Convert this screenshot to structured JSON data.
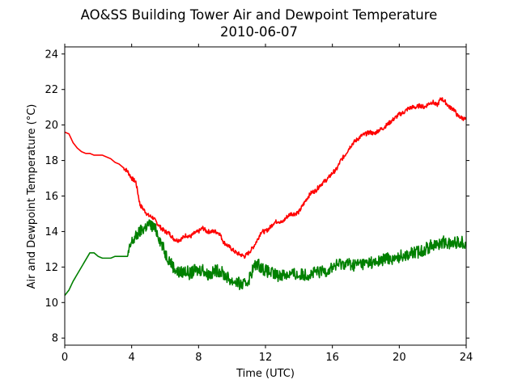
{
  "chart_data": {
    "type": "line",
    "title_line1": "AO&SS Building Tower Air and Dewpoint Temperature",
    "title_line2": "2010-06-07",
    "xlabel": "Time (UTC)",
    "ylabel": "Air and Dewpoint Temperature (°C)",
    "xlim": [
      0,
      24
    ],
    "ylim": [
      7.6,
      24.4
    ],
    "x_ticks": [
      0,
      4,
      8,
      12,
      16,
      20,
      24
    ],
    "y_ticks": [
      8,
      10,
      12,
      14,
      16,
      18,
      20,
      22,
      24
    ],
    "grid": false,
    "legend": "none",
    "series": [
      {
        "color": "#ff0000",
        "x": [
          0,
          0.25,
          0.5,
          0.75,
          1,
          1.25,
          1.5,
          1.75,
          2,
          2.25,
          2.5,
          2.75,
          3,
          3.25,
          3.5,
          3.75,
          4,
          4.25,
          4.5,
          4.75,
          5,
          5.25,
          5.5,
          5.75,
          6,
          6.25,
          6.5,
          6.75,
          7,
          7.25,
          7.5,
          7.75,
          8,
          8.25,
          8.5,
          8.75,
          9,
          9.25,
          9.5,
          9.75,
          10,
          10.25,
          10.5,
          10.75,
          11,
          11.25,
          11.5,
          11.75,
          12,
          12.25,
          12.5,
          12.75,
          13,
          13.25,
          13.5,
          13.75,
          14,
          14.25,
          14.5,
          14.75,
          15,
          15.25,
          15.5,
          15.75,
          16,
          16.25,
          16.5,
          16.75,
          17,
          17.25,
          17.5,
          17.75,
          18,
          18.25,
          18.5,
          18.75,
          19,
          19.25,
          19.5,
          19.75,
          20,
          20.25,
          20.5,
          20.75,
          21,
          21.25,
          21.5,
          21.75,
          22,
          22.25,
          22.5,
          22.75,
          23,
          23.25,
          23.5,
          23.75,
          24
        ],
        "y": [
          19.6,
          19.5,
          19.0,
          18.7,
          18.5,
          18.4,
          18.4,
          18.3,
          18.3,
          18.3,
          18.2,
          18.1,
          17.9,
          17.8,
          17.6,
          17.4,
          17.0,
          16.8,
          15.5,
          15.2,
          14.9,
          14.8,
          14.5,
          14.2,
          14.0,
          13.9,
          13.6,
          13.5,
          13.6,
          13.8,
          13.7,
          13.9,
          14.0,
          14.2,
          14.0,
          14.0,
          14.0,
          13.9,
          13.4,
          13.2,
          13.0,
          12.8,
          12.7,
          12.6,
          12.8,
          13.1,
          13.5,
          14.0,
          14.0,
          14.2,
          14.5,
          14.6,
          14.5,
          14.8,
          15.0,
          15.0,
          15.1,
          15.5,
          15.9,
          16.2,
          16.3,
          16.6,
          16.8,
          17.0,
          17.3,
          17.5,
          18.0,
          18.3,
          18.7,
          19.0,
          19.2,
          19.4,
          19.5,
          19.6,
          19.5,
          19.7,
          19.8,
          20.0,
          20.2,
          20.4,
          20.6,
          20.7,
          20.9,
          21.0,
          21.0,
          21.1,
          21.0,
          21.2,
          21.3,
          21.1,
          21.5,
          21.3,
          21.0,
          20.9,
          20.5,
          20.4,
          20.3
        ]
      },
      {
        "color": "#008000",
        "x": [
          0,
          0.25,
          0.5,
          0.75,
          1,
          1.25,
          1.5,
          1.75,
          2,
          2.25,
          2.5,
          2.75,
          3,
          3.25,
          3.5,
          3.75,
          4,
          4.25,
          4.5,
          4.75,
          5,
          5.25,
          5.5,
          5.75,
          6,
          6.25,
          6.5,
          6.75,
          7,
          7.25,
          7.5,
          7.75,
          8,
          8.25,
          8.5,
          8.75,
          9,
          9.25,
          9.5,
          9.75,
          10,
          10.25,
          10.5,
          10.75,
          11,
          11.25,
          11.5,
          11.75,
          12,
          12.25,
          12.5,
          12.75,
          13,
          13.25,
          13.5,
          13.75,
          14,
          14.25,
          14.5,
          14.75,
          15,
          15.25,
          15.5,
          15.75,
          16,
          16.25,
          16.5,
          16.75,
          17,
          17.25,
          17.5,
          17.75,
          18,
          18.25,
          18.5,
          18.75,
          19,
          19.25,
          19.5,
          19.75,
          20,
          20.25,
          20.5,
          20.75,
          21,
          21.25,
          21.5,
          21.75,
          22,
          22.25,
          22.5,
          22.75,
          23,
          23.25,
          23.5,
          23.75,
          24
        ],
        "y": [
          10.4,
          10.7,
          11.2,
          11.6,
          12.0,
          12.4,
          12.8,
          12.8,
          12.6,
          12.5,
          12.5,
          12.5,
          12.6,
          12.6,
          12.6,
          12.6,
          13.4,
          13.7,
          14.0,
          14.2,
          14.4,
          14.3,
          14.0,
          13.4,
          12.8,
          12.4,
          12.0,
          11.7,
          11.7,
          11.8,
          11.6,
          11.8,
          11.8,
          11.9,
          11.6,
          11.6,
          11.8,
          11.8,
          11.6,
          11.4,
          11.2,
          11.2,
          11.0,
          11.0,
          11.3,
          11.9,
          12.2,
          12.0,
          11.8,
          11.7,
          11.6,
          11.5,
          11.6,
          11.6,
          11.6,
          11.6,
          11.5,
          11.6,
          11.6,
          11.6,
          11.7,
          11.7,
          11.8,
          11.8,
          12.0,
          12.1,
          12.2,
          12.2,
          12.2,
          12.1,
          12.2,
          12.2,
          12.2,
          12.3,
          12.2,
          12.3,
          12.4,
          12.5,
          12.5,
          12.4,
          12.6,
          12.7,
          12.7,
          12.8,
          12.8,
          12.9,
          13.0,
          13.1,
          13.3,
          13.2,
          13.4,
          13.4,
          13.3,
          13.4,
          13.4,
          13.4,
          13.4
        ]
      }
    ]
  }
}
